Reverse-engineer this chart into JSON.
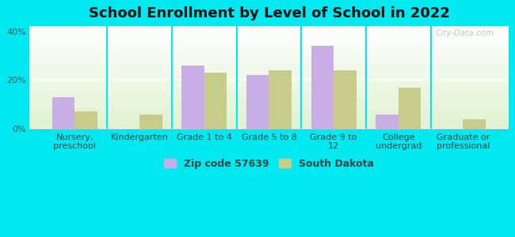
{
  "title": "School Enrollment by Level of School in 2022",
  "categories": [
    "Nursery,\npreschool",
    "Kindergarten",
    "Grade 1 to 4",
    "Grade 5 to 8",
    "Grade 9 to\n12",
    "College\nundergrad",
    "Graduate or\nprofessional"
  ],
  "zip_values": [
    13,
    0,
    26,
    22,
    34,
    6,
    0
  ],
  "state_values": [
    7,
    6,
    23,
    24,
    24,
    17,
    4
  ],
  "zip_color": "#c9aee5",
  "state_color": "#c8cc8a",
  "background_color": "#00e8f0",
  "ylim": [
    0,
    42
  ],
  "yticks": [
    0,
    20,
    40
  ],
  "ytick_labels": [
    "0%",
    "20%",
    "40%"
  ],
  "legend_zip": "Zip code 57639",
  "legend_state": "South Dakota",
  "title_fontsize": 13,
  "tick_fontsize": 8,
  "legend_fontsize": 9,
  "bar_width": 0.35
}
